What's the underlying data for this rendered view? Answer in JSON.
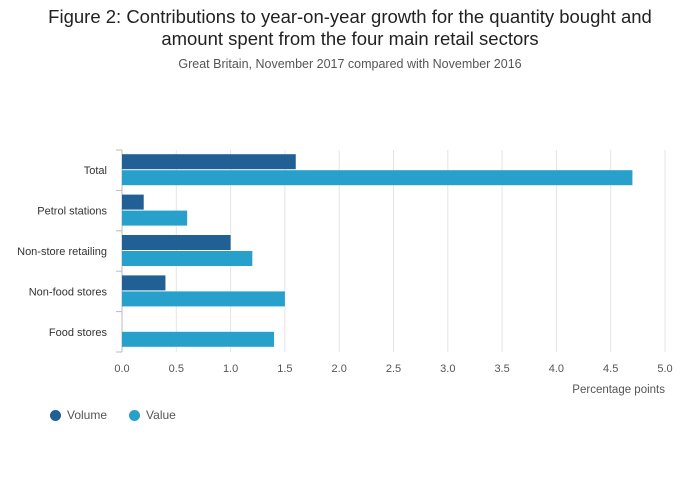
{
  "title_line1": "Figure 2: Contributions to year-on-year growth for the quantity bought and",
  "title_line2": "amount spent from the four main retail sectors",
  "subtitle": "Great Britain, November 2017 compared with November 2016",
  "colors": {
    "volume": "#206095",
    "value": "#27a0cc"
  },
  "chart_data": {
    "type": "bar",
    "orientation": "horizontal",
    "categories": [
      "Total",
      "Petrol stations",
      "Non-store retailing",
      "Non-food stores",
      "Food stores"
    ],
    "series": [
      {
        "name": "Volume",
        "values": [
          1.6,
          0.2,
          1.0,
          0.4,
          0.0
        ]
      },
      {
        "name": "Value",
        "values": [
          4.7,
          0.6,
          1.2,
          1.5,
          1.4
        ]
      }
    ],
    "xlabel": "Percentage points",
    "xlim": [
      0,
      5
    ],
    "xticks": [
      "0.0",
      "0.5",
      "1.0",
      "1.5",
      "2.0",
      "2.5",
      "3.0",
      "3.5",
      "4.0",
      "4.5",
      "5.0"
    ],
    "grid": true,
    "legend_position": "bottom-left"
  }
}
